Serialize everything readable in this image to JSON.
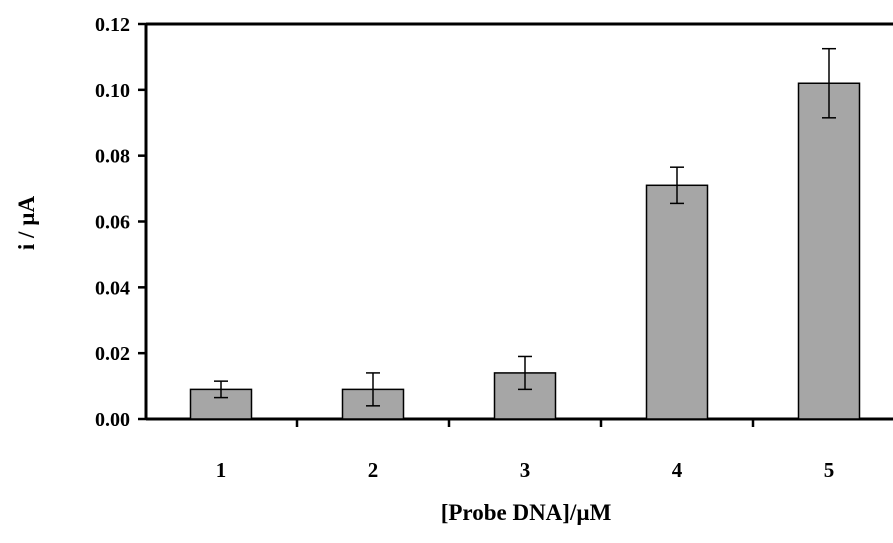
{
  "chart_data": {
    "type": "bar",
    "categories": [
      "1",
      "2",
      "3",
      "4",
      "5"
    ],
    "values": [
      0.009,
      0.009,
      0.014,
      0.071,
      0.102
    ],
    "errors": [
      0.0025,
      0.005,
      0.005,
      0.0055,
      0.0105
    ],
    "xlabel": "[Probe DNA]/µM",
    "ylabel": "i / µA",
    "ylim": [
      0,
      0.12
    ],
    "yticks": [
      "0.00",
      "0.02",
      "0.04",
      "0.06",
      "0.08",
      "0.10",
      "0.12"
    ],
    "ytick_values": [
      0,
      0.02,
      0.04,
      0.06,
      0.08,
      0.1,
      0.12
    ],
    "grid": false,
    "legend": "none",
    "bar_color": "#a6a6a6",
    "bar_edge_color": "#000000"
  }
}
